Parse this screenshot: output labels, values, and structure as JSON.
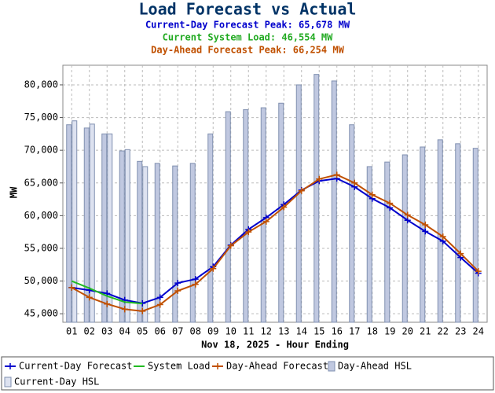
{
  "chart_data": {
    "type": "combo",
    "title": "Load Forecast vs Actual",
    "subtitles": [
      {
        "text": "Current-Day Forecast Peak:  65,678 MW",
        "color": "#0000cc"
      },
      {
        "text": "Current System Load:  46,554 MW",
        "color": "#22aa22"
      },
      {
        "text": "Day-Ahead Forecast Peak:  66,254 MW",
        "color": "#c05000"
      }
    ],
    "x_label": "Nov 18, 2025 - Hour Ending",
    "y_label": "MW",
    "categories": [
      "01",
      "02",
      "03",
      "04",
      "05",
      "06",
      "07",
      "08",
      "09",
      "10",
      "11",
      "12",
      "13",
      "14",
      "15",
      "16",
      "17",
      "18",
      "19",
      "20",
      "21",
      "22",
      "23",
      "24"
    ],
    "ylim": [
      43700,
      83000
    ],
    "yticks": [
      {
        "value": 45000,
        "label": "45,000"
      },
      {
        "value": 50000,
        "label": "50,000"
      },
      {
        "value": 55000,
        "label": "55,000"
      },
      {
        "value": 60000,
        "label": "60,000"
      },
      {
        "value": 65000,
        "label": "65,000"
      },
      {
        "value": 70000,
        "label": "70,000"
      },
      {
        "value": 75000,
        "label": "75,000"
      },
      {
        "value": 80000,
        "label": "80,000"
      }
    ],
    "grid": true,
    "series": [
      {
        "name": "Current-Day Forecast",
        "type": "line",
        "marker": true,
        "color": "#0000cc",
        "values": [
          49000,
          48600,
          48100,
          47100,
          46600,
          47500,
          49700,
          50300,
          52200,
          55500,
          57900,
          59700,
          61700,
          63900,
          65300,
          65678,
          64400,
          62600,
          61200,
          59300,
          57600,
          56100,
          53600,
          51200
        ]
      },
      {
        "name": "System Load",
        "type": "line",
        "marker": false,
        "color": "#22bb22",
        "values": [
          50000,
          48900,
          47700,
          46800,
          46554,
          null,
          null,
          null,
          null,
          null,
          null,
          null,
          null,
          null,
          null,
          null,
          null,
          null,
          null,
          null,
          null,
          null,
          null,
          null
        ]
      },
      {
        "name": "Day-Ahead Forecast",
        "type": "line",
        "marker": true,
        "color": "#c05000",
        "values": [
          49000,
          47500,
          46500,
          45700,
          45400,
          46400,
          48500,
          49500,
          51900,
          55400,
          57500,
          59100,
          61300,
          63800,
          65600,
          66254,
          65000,
          63200,
          61900,
          60100,
          58600,
          56800,
          54200,
          51500
        ]
      },
      {
        "name": "Day-Ahead HSL",
        "type": "bar",
        "color": "#c0c8e0",
        "values": [
          73900,
          73400,
          72500,
          69900,
          68300,
          68000,
          67600,
          68000,
          72500,
          75900,
          76200,
          76500,
          77200,
          80000,
          81600,
          80600,
          73900,
          67500,
          68200,
          69300,
          70500,
          71600,
          71000,
          70300
        ]
      },
      {
        "name": "Current-Day HSL",
        "type": "bar",
        "color": "#dde2f0",
        "values": [
          74500,
          74000,
          72500,
          70100,
          67500,
          null,
          null,
          null,
          null,
          null,
          null,
          null,
          null,
          null,
          null,
          null,
          null,
          null,
          null,
          null,
          null,
          null,
          null,
          null
        ]
      }
    ]
  }
}
